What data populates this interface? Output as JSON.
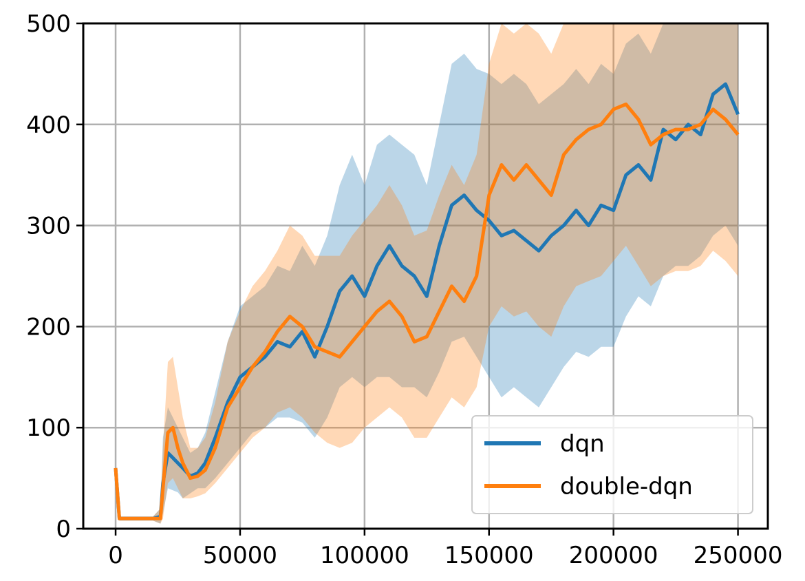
{
  "chart_data": {
    "type": "line",
    "title": "",
    "xlabel": "",
    "ylabel": "",
    "xlim": [
      -13000,
      262000
    ],
    "ylim": [
      0,
      500
    ],
    "x_ticks": [
      0,
      50000,
      100000,
      150000,
      200000,
      250000
    ],
    "y_ticks": [
      0,
      100,
      200,
      300,
      400,
      500
    ],
    "grid": true,
    "legend_position": "lower-right",
    "series": [
      {
        "name": "dqn",
        "color": "#1f77b4",
        "x": [
          0,
          1500,
          5000,
          10000,
          15000,
          18000,
          19000,
          21000,
          23000,
          25000,
          27000,
          30000,
          33000,
          36000,
          40000,
          45000,
          50000,
          55000,
          60000,
          65000,
          70000,
          75000,
          80000,
          85000,
          90000,
          95000,
          100000,
          105000,
          110000,
          115000,
          120000,
          125000,
          130000,
          135000,
          140000,
          145000,
          150000,
          155000,
          160000,
          165000,
          170000,
          175000,
          180000,
          185000,
          190000,
          195000,
          200000,
          205000,
          210000,
          215000,
          220000,
          225000,
          230000,
          235000,
          240000,
          245000,
          250000
        ],
        "y": [
          60,
          10,
          10,
          10,
          10,
          12,
          45,
          75,
          70,
          65,
          60,
          52,
          55,
          65,
          90,
          125,
          150,
          160,
          170,
          185,
          180,
          195,
          170,
          200,
          235,
          250,
          230,
          260,
          280,
          260,
          250,
          230,
          280,
          320,
          330,
          315,
          305,
          290,
          295,
          285,
          275,
          290,
          300,
          315,
          300,
          320,
          315,
          350,
          360,
          345,
          395,
          385,
          400,
          390,
          430,
          440,
          410
        ],
        "lower": [
          60,
          8,
          8,
          8,
          8,
          5,
          15,
          40,
          38,
          36,
          30,
          35,
          40,
          40,
          50,
          65,
          80,
          95,
          100,
          110,
          110,
          105,
          90,
          110,
          140,
          150,
          140,
          150,
          150,
          140,
          140,
          130,
          155,
          185,
          190,
          170,
          150,
          130,
          140,
          130,
          120,
          140,
          160,
          175,
          170,
          180,
          180,
          210,
          230,
          220,
          250,
          260,
          260,
          270,
          290,
          300,
          280
        ],
        "upper": [
          60,
          12,
          12,
          12,
          12,
          20,
          90,
          120,
          110,
          100,
          90,
          75,
          80,
          95,
          135,
          185,
          220,
          230,
          240,
          260,
          255,
          280,
          260,
          290,
          340,
          370,
          340,
          380,
          390,
          380,
          370,
          340,
          400,
          460,
          470,
          455,
          450,
          440,
          450,
          440,
          420,
          430,
          440,
          455,
          440,
          460,
          450,
          480,
          490,
          470,
          500,
          500,
          500,
          500,
          500,
          500,
          500
        ]
      },
      {
        "name": "double-dqn",
        "color": "#ff7f0e",
        "x": [
          0,
          1500,
          5000,
          10000,
          15000,
          18000,
          19000,
          21000,
          23000,
          25000,
          27000,
          30000,
          33000,
          36000,
          40000,
          45000,
          50000,
          55000,
          60000,
          65000,
          70000,
          75000,
          80000,
          85000,
          90000,
          95000,
          100000,
          105000,
          110000,
          115000,
          120000,
          125000,
          130000,
          135000,
          140000,
          145000,
          150000,
          155000,
          160000,
          165000,
          170000,
          175000,
          180000,
          185000,
          190000,
          195000,
          200000,
          205000,
          210000,
          215000,
          220000,
          225000,
          230000,
          235000,
          240000,
          245000,
          250000
        ],
        "y": [
          60,
          10,
          10,
          10,
          10,
          10,
          40,
          95,
          100,
          80,
          65,
          50,
          52,
          58,
          80,
          120,
          140,
          160,
          175,
          195,
          210,
          200,
          180,
          175,
          170,
          185,
          200,
          215,
          225,
          210,
          185,
          190,
          215,
          240,
          225,
          250,
          330,
          360,
          345,
          360,
          345,
          330,
          370,
          385,
          395,
          400,
          415,
          420,
          405,
          380,
          390,
          395,
          395,
          400,
          415,
          405,
          390
        ],
        "lower": [
          60,
          8,
          8,
          8,
          8,
          5,
          10,
          45,
          50,
          40,
          30,
          30,
          32,
          35,
          45,
          60,
          75,
          90,
          100,
          115,
          120,
          110,
          95,
          85,
          80,
          85,
          100,
          110,
          120,
          110,
          90,
          90,
          110,
          130,
          120,
          140,
          200,
          220,
          210,
          215,
          200,
          190,
          220,
          240,
          245,
          250,
          265,
          280,
          260,
          240,
          250,
          255,
          255,
          260,
          275,
          265,
          250
        ],
        "upper": [
          60,
          12,
          12,
          12,
          12,
          20,
          80,
          165,
          170,
          140,
          110,
          80,
          80,
          90,
          125,
          185,
          215,
          240,
          255,
          275,
          300,
          290,
          270,
          270,
          270,
          290,
          305,
          320,
          340,
          320,
          290,
          295,
          330,
          360,
          340,
          370,
          460,
          500,
          490,
          500,
          490,
          470,
          500,
          500,
          500,
          500,
          500,
          500,
          500,
          500,
          500,
          500,
          500,
          500,
          500,
          500,
          500
        ]
      }
    ]
  }
}
